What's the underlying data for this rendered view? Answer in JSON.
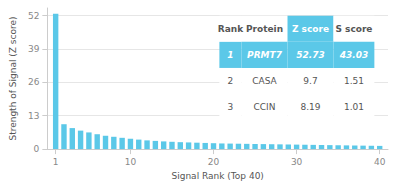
{
  "chart_data": {
    "type": "bar",
    "xlabel": "Signal Rank (Top 40)",
    "ylabel": "Strength of Signal (Z score)",
    "x": [
      1,
      2,
      3,
      4,
      5,
      6,
      7,
      8,
      9,
      10,
      11,
      12,
      13,
      14,
      15,
      16,
      17,
      18,
      19,
      20,
      21,
      22,
      23,
      24,
      25,
      26,
      27,
      28,
      29,
      30,
      31,
      32,
      33,
      34,
      35,
      36,
      37,
      38,
      39,
      40
    ],
    "values": [
      52.73,
      9.7,
      8.19,
      7.2,
      6.5,
      5.8,
      5.2,
      4.8,
      4.4,
      4.0,
      3.7,
      3.4,
      3.2,
      3.0,
      2.85,
      2.7,
      2.6,
      2.5,
      2.4,
      2.3,
      2.2,
      2.15,
      2.1,
      2.05,
      2.0,
      1.95,
      1.9,
      1.85,
      1.8,
      1.75,
      1.7,
      1.65,
      1.6,
      1.55,
      1.5,
      1.45,
      1.4,
      1.35,
      1.3,
      1.25
    ],
    "color": "#5bc8e8",
    "xlim": [
      0,
      41
    ],
    "xticks": [
      1,
      10,
      20,
      30,
      40
    ],
    "ylim": [
      0,
      55
    ],
    "yticks": [
      0,
      13,
      26,
      39,
      52
    ],
    "grid": true,
    "table": {
      "header": [
        "Rank",
        "Protein",
        "Z score",
        "S score"
      ],
      "rows": [
        [
          "1",
          "PRMT7",
          "52.73",
          "43.03"
        ],
        [
          "2",
          "CASA",
          "9.7",
          "1.51"
        ],
        [
          "3",
          "CCIN",
          "8.19",
          "1.01"
        ]
      ]
    }
  }
}
